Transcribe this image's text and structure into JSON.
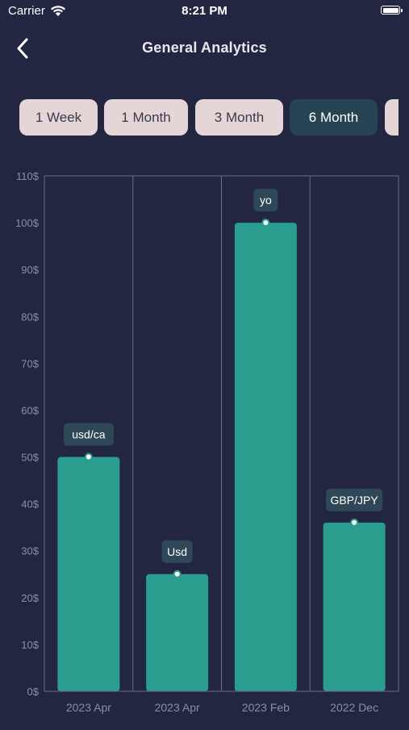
{
  "status_bar": {
    "carrier": "Carrier",
    "time": "8:21 PM"
  },
  "nav": {
    "title": "General Analytics"
  },
  "tabs": [
    {
      "label": "1 Week",
      "active": false
    },
    {
      "label": "1 Month",
      "active": false
    },
    {
      "label": "3 Month",
      "active": false
    },
    {
      "label": "6 Month",
      "active": true
    },
    {
      "label": "",
      "active": false
    }
  ],
  "colors": {
    "background": "#222640",
    "bar": "#2a9d8f",
    "grid": "#6b6e80",
    "tab": "#e4d6d6",
    "tab_active": "#274454",
    "label_bg": "#2f4858"
  },
  "chart_data": {
    "type": "bar",
    "categories": [
      "2023 Apr",
      "2023 Apr",
      "2023 Feb",
      "2022 Dec"
    ],
    "values": [
      50,
      25,
      100,
      36
    ],
    "labels": [
      "usd/ca",
      "Usd",
      "yo",
      "GBP/JPY"
    ],
    "ylim": [
      0,
      110
    ],
    "yticks": [
      "0$",
      "10$",
      "20$",
      "30$",
      "40$",
      "50$",
      "60$",
      "70$",
      "80$",
      "90$",
      "100$",
      "110$"
    ],
    "ytick_values": [
      0,
      10,
      20,
      30,
      40,
      50,
      60,
      70,
      80,
      90,
      100,
      110
    ],
    "grid": true
  }
}
